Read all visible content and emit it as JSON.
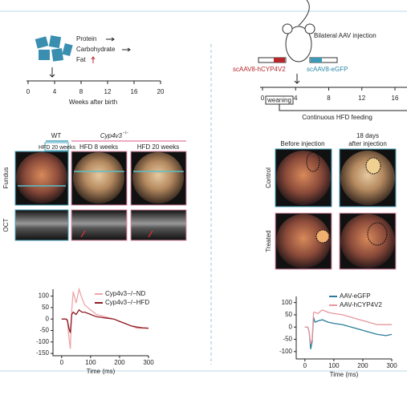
{
  "left": {
    "diet": [
      "Protein",
      "Carbohydrate",
      "Fat"
    ],
    "timeline": {
      "ticks": [
        0,
        4,
        8,
        12,
        16,
        20
      ],
      "label": "Weeks after birth"
    },
    "groups": {
      "wt": "WT",
      "ko": "Cyp4v3",
      "ko_sup": "−/−"
    },
    "conditions": [
      "HFD 20 weeks",
      "HFD 8 weeks",
      "HFD 20 weeks"
    ],
    "rows": [
      "Fundus",
      "OCT"
    ]
  },
  "right": {
    "title": "Bilateral AAV injection",
    "vectors": [
      "scAAV8-hCYP4V2",
      "scAAV8-eGFP"
    ],
    "timeline": {
      "ticks": [
        0,
        4,
        8,
        12,
        16
      ],
      "weaning": "weaning",
      "feeding": "Continuous HFD feeding"
    },
    "columns": [
      "Before injection",
      "18 days",
      "after injection"
    ],
    "rows": [
      "Control",
      "Treated"
    ]
  },
  "chart_data": [
    {
      "type": "line",
      "xlabel": "Time (ms)",
      "legend": "upper right",
      "xlim": [
        -30,
        300
      ],
      "ylim": [
        -160,
        130
      ],
      "xticks": [
        0,
        100,
        200,
        300
      ],
      "yticks": [
        100,
        50,
        0,
        -50,
        -100,
        -150
      ],
      "x": [
        0,
        15,
        20,
        25,
        30,
        35,
        40,
        50,
        60,
        70,
        80,
        100,
        120,
        150,
        180,
        200,
        220,
        240,
        260,
        280,
        300
      ],
      "series": [
        {
          "name": "Cyp4v3−/−ND",
          "color": "#eea4aa",
          "values": [
            0,
            0,
            -10,
            -80,
            -130,
            40,
            120,
            70,
            130,
            90,
            60,
            40,
            20,
            10,
            0,
            -10,
            -20,
            -30,
            -40,
            -40,
            -40
          ]
        },
        {
          "name": "Cyp4v3−/−HFD",
          "color": "#8b1c24",
          "values": [
            0,
            0,
            -5,
            -40,
            -60,
            20,
            30,
            20,
            40,
            30,
            30,
            20,
            10,
            5,
            0,
            -10,
            -20,
            -30,
            -35,
            -38,
            -40
          ]
        }
      ]
    },
    {
      "type": "line",
      "xlabel": "Time (ms)",
      "legend": "upper right",
      "xlim": [
        -30,
        300
      ],
      "ylim": [
        -130,
        125
      ],
      "xticks": [
        0,
        100,
        200,
        300
      ],
      "yticks": [
        100,
        50,
        0,
        -50,
        -100
      ],
      "x": [
        0,
        10,
        15,
        20,
        25,
        30,
        35,
        45,
        60,
        80,
        100,
        130,
        160,
        190,
        220,
        250,
        280,
        300
      ],
      "series": [
        {
          "name": "AAV-eGFP",
          "color": "#2a7d9a",
          "values": [
            0,
            0,
            -20,
            -90,
            -60,
            40,
            20,
            25,
            30,
            20,
            15,
            10,
            0,
            -10,
            -20,
            -30,
            -35,
            -30
          ]
        },
        {
          "name": "AAV-hCYP4V2",
          "color": "#e8979d",
          "values": [
            0,
            0,
            -20,
            -70,
            -50,
            60,
            60,
            55,
            70,
            60,
            55,
            50,
            40,
            30,
            20,
            10,
            10,
            10
          ]
        }
      ]
    }
  ]
}
